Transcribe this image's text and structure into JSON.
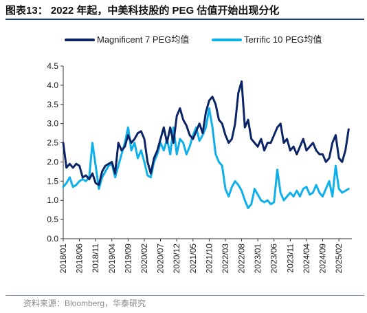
{
  "figure": {
    "title": "图表13：  2022 年起，中美科技股的 PEG 估值开始出现分化",
    "source": "资料来源：Bloomberg，华泰研究"
  },
  "colors": {
    "series1": "#0b2466",
    "series2": "#0fb0ea"
  },
  "chart_data": {
    "type": "line",
    "title": "",
    "xlabel": "",
    "ylabel": "",
    "ylim": [
      0,
      4.5
    ],
    "yticks": [
      "0.0",
      "0.5",
      "1.0",
      "1.5",
      "2.0",
      "2.5",
      "3.0",
      "3.5",
      "4.0",
      "4.5"
    ],
    "xlim": [
      "2018-01",
      "2025-06"
    ],
    "xticks": [
      "2018/01",
      "2018/06",
      "2018/11",
      "2019/04",
      "2019/09",
      "2020/02",
      "2020/07",
      "2020/12",
      "2021/05",
      "2021/10",
      "2022/03",
      "2022/08",
      "2023/01",
      "2023/06",
      "2023/11",
      "2024/04",
      "2024/09",
      "2025/02"
    ],
    "grid": false,
    "legend": "top",
    "series": [
      {
        "name": "Magnificent 7 PEG均值",
        "points": [
          [
            "2018-01",
            2.5
          ],
          [
            "2018-02",
            1.85
          ],
          [
            "2018-03",
            1.95
          ],
          [
            "2018-04",
            1.85
          ],
          [
            "2018-05",
            1.95
          ],
          [
            "2018-06",
            1.9
          ],
          [
            "2018-07",
            1.6
          ],
          [
            "2018-08",
            1.65
          ],
          [
            "2018-09",
            1.55
          ],
          [
            "2018-10",
            1.7
          ],
          [
            "2018-11",
            1.45
          ],
          [
            "2018-12",
            1.4
          ],
          [
            "2019-01",
            1.75
          ],
          [
            "2019-02",
            1.9
          ],
          [
            "2019-03",
            1.95
          ],
          [
            "2019-04",
            2.0
          ],
          [
            "2019-05",
            1.7
          ],
          [
            "2019-06",
            2.5
          ],
          [
            "2019-07",
            2.3
          ],
          [
            "2019-08",
            2.4
          ],
          [
            "2019-09",
            2.7
          ],
          [
            "2019-10",
            2.5
          ],
          [
            "2019-11",
            2.6
          ],
          [
            "2019-12",
            2.75
          ],
          [
            "2020-01",
            2.8
          ],
          [
            "2020-02",
            2.6
          ],
          [
            "2020-03",
            2.0
          ],
          [
            "2020-04",
            1.7
          ],
          [
            "2020-05",
            2.1
          ],
          [
            "2020-06",
            2.3
          ],
          [
            "2020-07",
            2.6
          ],
          [
            "2020-08",
            2.9
          ],
          [
            "2020-09",
            2.5
          ],
          [
            "2020-10",
            2.9
          ],
          [
            "2020-11",
            2.5
          ],
          [
            "2020-12",
            3.2
          ],
          [
            "2021-01",
            3.4
          ],
          [
            "2021-02",
            3.1
          ],
          [
            "2021-03",
            2.95
          ],
          [
            "2021-04",
            2.7
          ],
          [
            "2021-05",
            2.6
          ],
          [
            "2021-06",
            2.8
          ],
          [
            "2021-07",
            3.0
          ],
          [
            "2021-08",
            2.75
          ],
          [
            "2021-09",
            3.3
          ],
          [
            "2021-10",
            3.6
          ],
          [
            "2021-11",
            3.7
          ],
          [
            "2021-12",
            3.5
          ],
          [
            "2022-01",
            3.1
          ],
          [
            "2022-02",
            3.0
          ],
          [
            "2022-03",
            2.7
          ],
          [
            "2022-04",
            2.5
          ],
          [
            "2022-05",
            2.6
          ],
          [
            "2022-06",
            3.0
          ],
          [
            "2022-07",
            3.8
          ],
          [
            "2022-08",
            4.1
          ],
          [
            "2022-09",
            2.9
          ],
          [
            "2022-10",
            3.1
          ],
          [
            "2022-11",
            2.6
          ],
          [
            "2022-12",
            2.5
          ],
          [
            "2023-01",
            2.4
          ],
          [
            "2023-02",
            2.6
          ],
          [
            "2023-03",
            2.3
          ],
          [
            "2023-04",
            2.5
          ],
          [
            "2023-05",
            2.5
          ],
          [
            "2023-06",
            2.7
          ],
          [
            "2023-07",
            2.9
          ],
          [
            "2023-08",
            3.0
          ],
          [
            "2023-09",
            2.5
          ],
          [
            "2023-10",
            2.6
          ],
          [
            "2023-11",
            2.3
          ],
          [
            "2023-12",
            2.4
          ],
          [
            "2024-01",
            2.2
          ],
          [
            "2024-02",
            2.4
          ],
          [
            "2024-03",
            2.6
          ],
          [
            "2024-04",
            2.3
          ],
          [
            "2024-05",
            2.4
          ],
          [
            "2024-06",
            2.5
          ],
          [
            "2024-07",
            2.3
          ],
          [
            "2024-08",
            2.2
          ],
          [
            "2024-09",
            2.2
          ],
          [
            "2024-10",
            2.0
          ],
          [
            "2024-11",
            2.1
          ],
          [
            "2024-12",
            2.5
          ],
          [
            "2025-01",
            2.7
          ],
          [
            "2025-02",
            2.1
          ],
          [
            "2025-03",
            2.0
          ],
          [
            "2025-04",
            2.3
          ],
          [
            "2025-05",
            2.85
          ]
        ]
      },
      {
        "name": "Terrific 10 PEG均值",
        "points": [
          [
            "2018-01",
            1.35
          ],
          [
            "2018-02",
            1.45
          ],
          [
            "2018-03",
            1.6
          ],
          [
            "2018-04",
            1.35
          ],
          [
            "2018-05",
            1.4
          ],
          [
            "2018-06",
            1.5
          ],
          [
            "2018-07",
            1.55
          ],
          [
            "2018-08",
            1.5
          ],
          [
            "2018-09",
            1.6
          ],
          [
            "2018-10",
            2.5
          ],
          [
            "2018-11",
            1.9
          ],
          [
            "2018-12",
            1.3
          ],
          [
            "2019-01",
            1.6
          ],
          [
            "2019-02",
            1.75
          ],
          [
            "2019-03",
            1.9
          ],
          [
            "2019-04",
            1.95
          ],
          [
            "2019-05",
            1.6
          ],
          [
            "2019-06",
            1.9
          ],
          [
            "2019-07",
            2.2
          ],
          [
            "2019-08",
            2.5
          ],
          [
            "2019-09",
            2.9
          ],
          [
            "2019-10",
            2.3
          ],
          [
            "2019-11",
            2.5
          ],
          [
            "2019-12",
            2.1
          ],
          [
            "2020-01",
            2.3
          ],
          [
            "2020-02",
            2.0
          ],
          [
            "2020-03",
            1.65
          ],
          [
            "2020-04",
            1.6
          ],
          [
            "2020-05",
            2.0
          ],
          [
            "2020-06",
            2.2
          ],
          [
            "2020-07",
            2.5
          ],
          [
            "2020-08",
            2.3
          ],
          [
            "2020-09",
            2.6
          ],
          [
            "2020-10",
            2.2
          ],
          [
            "2020-11",
            2.9
          ],
          [
            "2020-12",
            2.2
          ],
          [
            "2021-01",
            2.6
          ],
          [
            "2021-02",
            2.5
          ],
          [
            "2021-03",
            2.2
          ],
          [
            "2021-04",
            2.4
          ],
          [
            "2021-05",
            2.7
          ],
          [
            "2021-06",
            2.9
          ],
          [
            "2021-07",
            2.55
          ],
          [
            "2021-08",
            2.7
          ],
          [
            "2021-09",
            2.9
          ],
          [
            "2021-10",
            3.4
          ],
          [
            "2021-11",
            2.9
          ],
          [
            "2021-12",
            2.2
          ],
          [
            "2022-01",
            2.0
          ],
          [
            "2022-02",
            1.9
          ],
          [
            "2022-03",
            1.3
          ],
          [
            "2022-04",
            1.1
          ],
          [
            "2022-05",
            1.35
          ],
          [
            "2022-06",
            1.5
          ],
          [
            "2022-07",
            1.4
          ],
          [
            "2022-08",
            1.25
          ],
          [
            "2022-09",
            1.0
          ],
          [
            "2022-10",
            0.8
          ],
          [
            "2022-11",
            0.9
          ],
          [
            "2022-12",
            1.3
          ],
          [
            "2023-01",
            1.15
          ],
          [
            "2023-02",
            1.0
          ],
          [
            "2023-03",
            0.95
          ],
          [
            "2023-04",
            1.0
          ],
          [
            "2023-05",
            0.9
          ],
          [
            "2023-06",
            0.95
          ],
          [
            "2023-07",
            1.8
          ],
          [
            "2023-08",
            1.2
          ],
          [
            "2023-09",
            1.0
          ],
          [
            "2023-10",
            1.1
          ],
          [
            "2023-11",
            1.2
          ],
          [
            "2023-12",
            1.1
          ],
          [
            "2024-01",
            1.25
          ],
          [
            "2024-02",
            1.1
          ],
          [
            "2024-03",
            1.3
          ],
          [
            "2024-04",
            1.35
          ],
          [
            "2024-05",
            1.15
          ],
          [
            "2024-06",
            1.2
          ],
          [
            "2024-07",
            1.4
          ],
          [
            "2024-08",
            1.2
          ],
          [
            "2024-09",
            1.1
          ],
          [
            "2024-10",
            1.3
          ],
          [
            "2024-11",
            1.5
          ],
          [
            "2024-12",
            1.1
          ],
          [
            "2025-01",
            1.9
          ],
          [
            "2025-02",
            1.3
          ],
          [
            "2025-03",
            1.2
          ],
          [
            "2025-04",
            1.25
          ],
          [
            "2025-05",
            1.3
          ]
        ]
      }
    ]
  }
}
